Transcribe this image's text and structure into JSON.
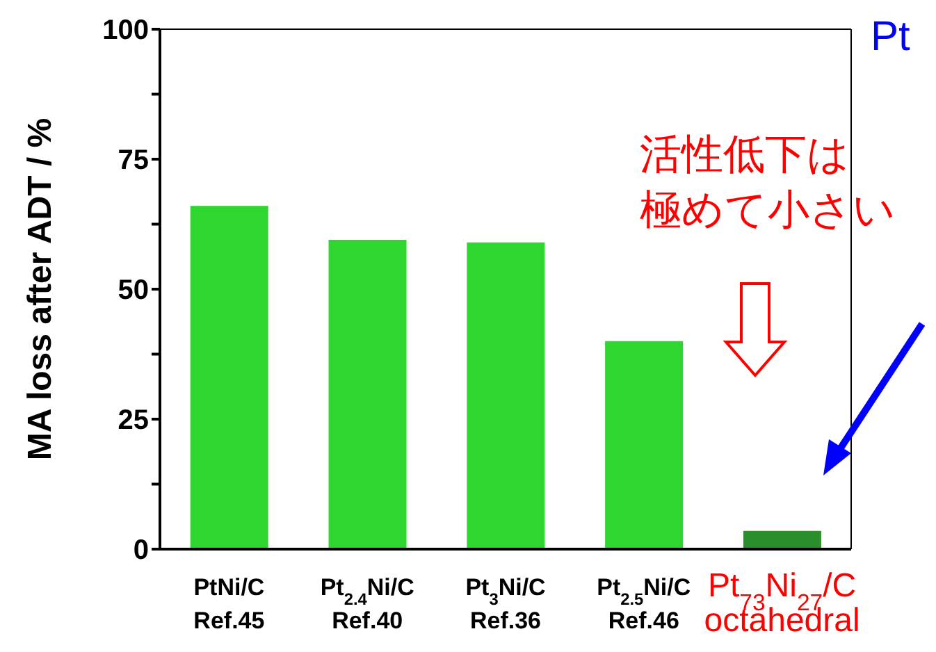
{
  "chart_data": {
    "type": "bar",
    "ylabel": "MA loss after ADT / %",
    "categories": [
      "PtNi/C\nRef.45",
      "Pt$_{2.4}$Ni/C\nRef.40",
      "Pt$_{3}$Ni/C\nRef.36",
      "Pt$_{2.5}$Ni/C\nRef.46",
      "Pt$_{73}$Ni$_{27}$/C\noctahedral"
    ],
    "values": [
      66,
      59.5,
      59,
      40,
      3.5
    ],
    "colors": [
      "#2fd62f",
      "#2fd62f",
      "#2fd62f",
      "#2fd62f",
      "#2a8f2a"
    ],
    "ylim": [
      0,
      100
    ],
    "yticks": [
      0,
      {
        "value": 12.5,
        "label": null
      },
      25,
      {
        "value": 37.5,
        "label": null
      },
      50,
      {
        "value": 62.5,
        "label": null
      },
      75,
      {
        "value": 87.5,
        "label": null
      },
      100
    ],
    "annotations": [
      "活性低下は極めて小さい",
      "Pt"
    ]
  }
}
